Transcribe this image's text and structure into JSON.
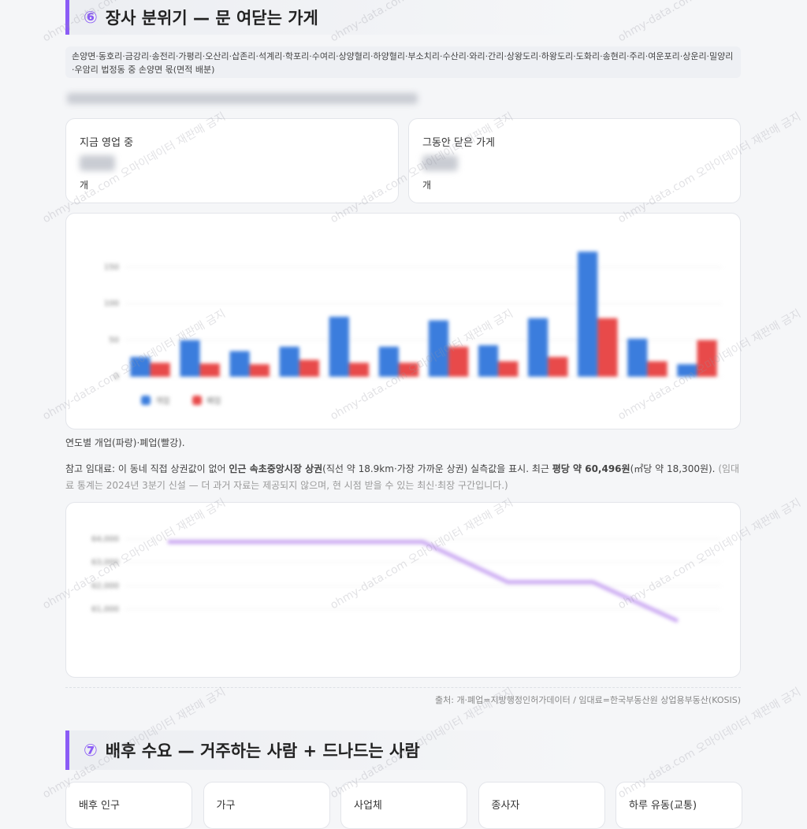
{
  "section6": {
    "number": "⑥",
    "title": "장사 분위기 — 문 여닫는 가게",
    "tags": "손양면·동호리·금강리·송전리·가평리·오산리·삽존리·석계리·학포리·수여리·상양혈리·하양혈리·부소치리·수산리·와리·간리·상왕도리·하왕도리·도화리·송현리·주리·여운포리·상운리·밀양리·우암리 법정동 중 손양면 몫(면적 배분)",
    "cards": [
      {
        "label": "지금 영업 중",
        "unit": "개"
      },
      {
        "label": "그동안 닫은 가게",
        "unit": "개"
      }
    ],
    "caption": "연도별 개업(파랑)·폐업(빨강).",
    "rent_note": [
      "참고 임대료: 이 동네 직접 상권값이 없어 ",
      "인근 속초중앙시장 상권",
      "(직선 약 18.9km·가장 가까운 상권) 실측값을 표시. 최근 ",
      "평당 약 60,496원",
      "(㎡당 약 18,300원). ",
      "(임대료 통계는 2024년 3분기 신설 — 더 과거 자료는 제공되지 않으며, 현 시점 받을 수 있는 최신·최장 구간입니다.)"
    ],
    "source": "출처: 개·폐업=지방행정인허가데이터 / 임대료=한국부동산원 상업용부동산(KOSIS)"
  },
  "chart_data": [
    {
      "type": "bar",
      "categories": [
        null,
        null,
        null,
        null,
        null,
        null,
        null,
        null,
        null,
        null,
        null,
        null
      ],
      "series": [
        {
          "name": "개업",
          "color": "#3b7ddd",
          "values": [
            27,
            50,
            35,
            41,
            82,
            41,
            77,
            43,
            80,
            171,
            52,
            17
          ]
        },
        {
          "name": "폐업",
          "color": "#e84a4a",
          "values": [
            19,
            18,
            17,
            23,
            19,
            19,
            41,
            21,
            27,
            80,
            21,
            50
          ]
        }
      ],
      "ylim": [
        0,
        180
      ],
      "yticks": [
        0,
        50,
        100,
        150
      ],
      "grid": true,
      "legend": "bottom-left"
    },
    {
      "type": "line",
      "categories": [
        null,
        null,
        null,
        null,
        null,
        null,
        null
      ],
      "series": [
        {
          "name": null,
          "color": "#c9a6f2",
          "values": [
            63870,
            63870,
            63870,
            63870,
            62160,
            62160,
            60496
          ]
        }
      ],
      "ylim": [
        60500,
        64200
      ],
      "yticks": [
        {
          "value": 61000,
          "label": "61,000"
        },
        {
          "value": 62000,
          "label": "62,000"
        },
        {
          "value": 63000,
          "label": "63,000"
        },
        {
          "value": 64000,
          "label": "64,000"
        }
      ],
      "grid": true
    }
  ],
  "section7": {
    "number": "⑦",
    "title": "배후 수요 — 거주하는 사람 + 드나드는 사람",
    "cards": [
      "배후 인구",
      "가구",
      "사업체",
      "종사자",
      "하루 유동(교통)"
    ]
  },
  "watermark": "ohmy-data.com 오마이데이터 재판매 금지"
}
